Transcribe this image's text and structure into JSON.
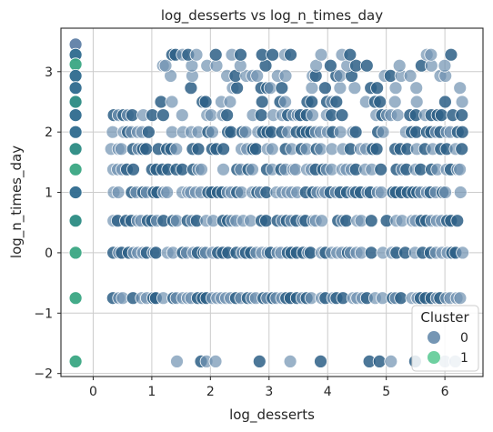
{
  "chart_data": {
    "type": "scatter",
    "title": "log_desserts vs log_n_times_day",
    "xlabel": "log_desserts",
    "ylabel": "log_n_times_day",
    "xlim": [
      -0.55,
      6.65
    ],
    "ylim": [
      -2.05,
      3.72
    ],
    "xticks": [
      0,
      1,
      2,
      3,
      4,
      5,
      6
    ],
    "yticks": [
      -2,
      -1,
      0,
      1,
      2,
      3
    ],
    "grid": true,
    "legend": {
      "title": "Cluster",
      "placement": "bottom-right",
      "entries": [
        {
          "label": "0",
          "color": "#7596b4"
        },
        {
          "label": "1",
          "color": "#6ed0a0"
        }
      ]
    },
    "cluster0": {
      "name": "0",
      "color": "#2d6b8e",
      "levels": [
        -1.8,
        -0.75,
        0,
        0.53,
        1.0,
        1.38,
        1.72,
        2.0,
        2.28,
        2.5,
        2.73,
        2.93,
        3.1,
        3.28
      ],
      "x_range": [
        0.33,
        6.33
      ]
    },
    "cluster1": {
      "name": "1",
      "x": -0.3,
      "points": [
        {
          "y": 3.45,
          "color": "#5f7fa6"
        },
        {
          "y": 3.28,
          "color": "#2e6a8e"
        },
        {
          "y": 3.12,
          "color": "#3aa683"
        },
        {
          "y": 2.93,
          "color": "#2e6a8e"
        },
        {
          "y": 2.73,
          "color": "#2e6a8e"
        },
        {
          "y": 2.5,
          "color": "#2b8b83"
        },
        {
          "y": 2.28,
          "color": "#2e6a8e"
        },
        {
          "y": 2.0,
          "color": "#2e6a8e"
        },
        {
          "y": 1.72,
          "color": "#2b8b83"
        },
        {
          "y": 1.38,
          "color": "#3aa683"
        },
        {
          "y": 1.0,
          "color": "#2e6a8e"
        },
        {
          "y": 0.53,
          "color": "#2b8b83"
        },
        {
          "y": 0.0,
          "color": "#3aa683"
        },
        {
          "y": -0.75,
          "color": "#3aa683"
        },
        {
          "y": -1.8,
          "color": "#3aa683"
        }
      ]
    }
  }
}
